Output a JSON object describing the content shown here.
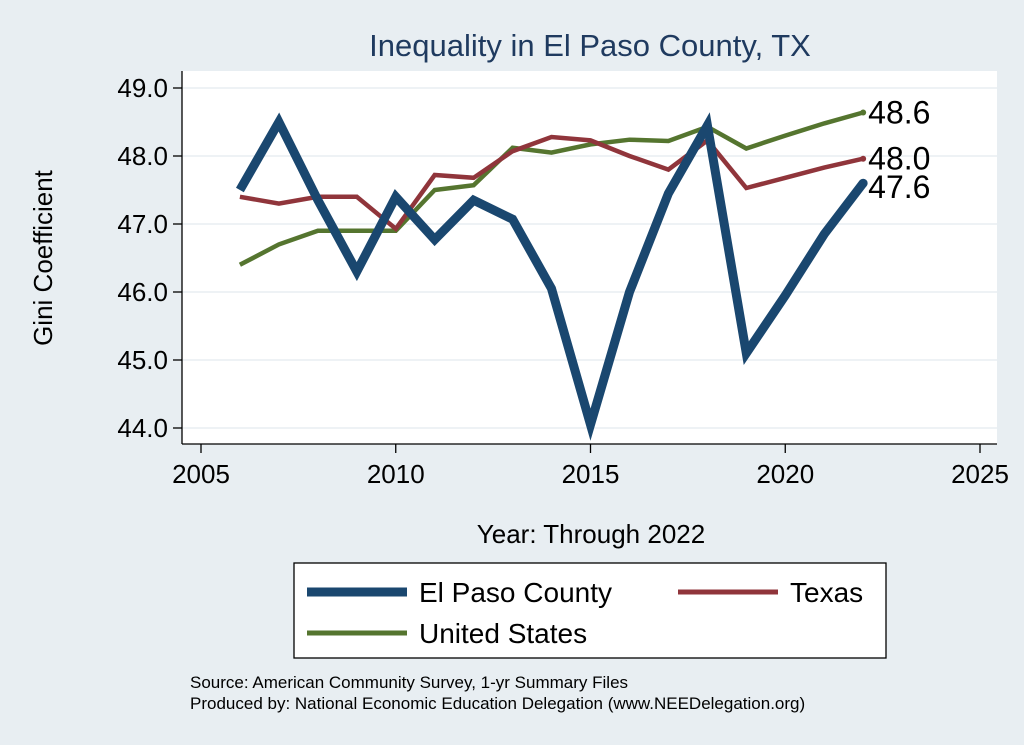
{
  "chart_data": {
    "type": "line",
    "title": "Inequality in El Paso County, TX",
    "xlabel": "Year: Through 2022",
    "ylabel": "Gini Coefficient",
    "xlim": [
      2005,
      2025
    ],
    "ylim": [
      44.0,
      49.0
    ],
    "x_ticks": [
      2005,
      2010,
      2015,
      2020,
      2025
    ],
    "y_ticks": [
      44.0,
      45.0,
      46.0,
      47.0,
      48.0,
      49.0
    ],
    "y_tick_labels": [
      "44.0",
      "45.0",
      "46.0",
      "47.0",
      "48.0",
      "49.0"
    ],
    "grid": true,
    "legend_position": "bottom",
    "series": [
      {
        "name": "El Paso County",
        "color": "#1a476f",
        "x": [
          2006,
          2007,
          2008,
          2009,
          2010,
          2011,
          2012,
          2013,
          2014,
          2015,
          2016,
          2017,
          2018,
          2019,
          2020,
          2021,
          2022
        ],
        "values": [
          47.5,
          48.5,
          47.35,
          46.3,
          47.4,
          46.77,
          47.35,
          47.07,
          46.05,
          44.05,
          46.0,
          47.45,
          48.45,
          45.1,
          45.95,
          46.85,
          47.6
        ],
        "end_label": "47.6"
      },
      {
        "name": "Texas",
        "color": "#90353b",
        "x": [
          2006,
          2007,
          2008,
          2009,
          2010,
          2011,
          2012,
          2013,
          2014,
          2015,
          2016,
          2017,
          2018,
          2019,
          2020,
          2021,
          2022
        ],
        "values": [
          47.4,
          47.3,
          47.4,
          47.4,
          46.93,
          47.72,
          47.68,
          48.07,
          48.28,
          48.23,
          48.0,
          47.8,
          48.23,
          47.53,
          47.68,
          47.83,
          47.96
        ],
        "end_label": "48.0"
      },
      {
        "name": "United States",
        "color": "#55752f",
        "x": [
          2006,
          2007,
          2008,
          2009,
          2010,
          2011,
          2012,
          2013,
          2014,
          2015,
          2016,
          2017,
          2018,
          2019,
          2020,
          2021,
          2022
        ],
        "values": [
          46.4,
          46.7,
          46.9,
          46.9,
          46.9,
          47.5,
          47.57,
          48.12,
          48.05,
          48.17,
          48.24,
          48.22,
          48.43,
          48.11,
          48.3,
          48.48,
          48.64
        ],
        "end_label": "48.6"
      }
    ],
    "source_lines": [
      "Source: American Community Survey, 1-yr Summary Files",
      "Produced by: National Economic Education Delegation (www.NEEDelegation.org)"
    ]
  }
}
